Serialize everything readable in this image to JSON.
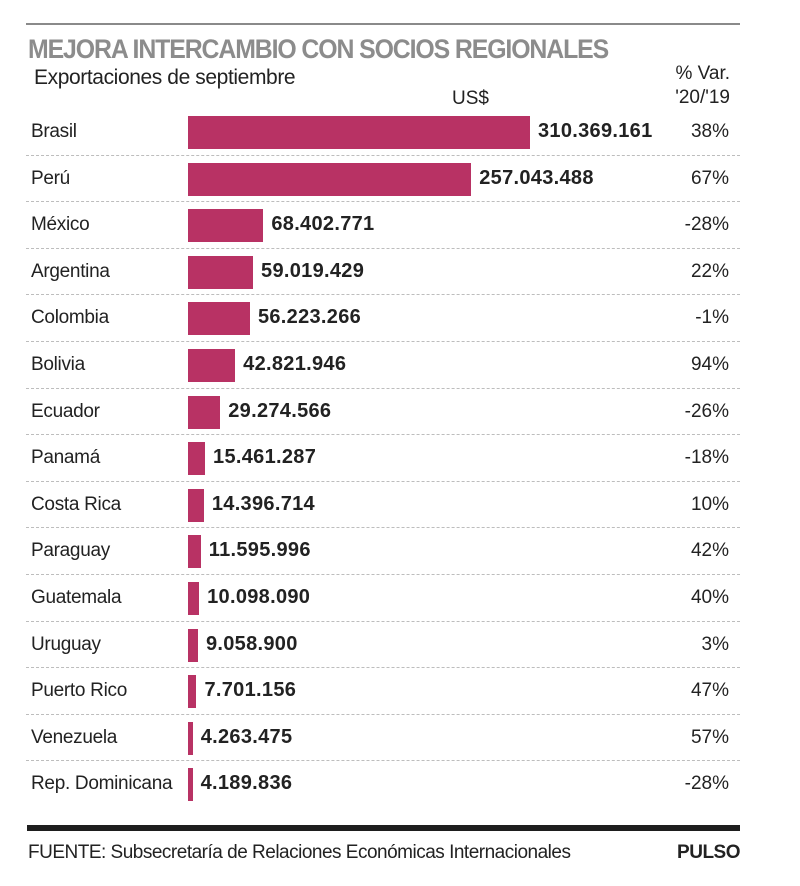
{
  "chart_data": {
    "type": "bar",
    "orientation": "horizontal",
    "title": "MEJORA INTERCAMBIO CON SOCIOS REGIONALES",
    "subtitle": "Exportaciones de septiembre",
    "value_unit": "US$",
    "var_header": [
      "% Var.",
      "'20/'19"
    ],
    "categories": [
      "Brasil",
      "Perú",
      "México",
      "Argentina",
      "Colombia",
      "Bolivia",
      "Ecuador",
      "Panamá",
      "Costa Rica",
      "Paraguay",
      "Guatemala",
      "Uruguay",
      "Puerto Rico",
      "Venezuela",
      "Rep. Dominicana"
    ],
    "values": [
      310369161,
      257043488,
      68402771,
      59019429,
      56223266,
      42821946,
      29274566,
      15461287,
      14396714,
      11595996,
      10098090,
      9058900,
      7701156,
      4263475,
      4189836
    ],
    "value_labels": [
      "310.369.161",
      "257.043.488",
      "68.402.771",
      "59.019.429",
      "56.223.266",
      "42.821.946",
      "29.274.566",
      "15.461.287",
      "14.396.714",
      "11.595.996",
      "10.098.090",
      "9.058.900",
      "7.701.156",
      "4.263.475",
      "4.189.836"
    ],
    "var_pct": [
      "38%",
      "67%",
      "-28%",
      "22%",
      "-1%",
      "94%",
      "-26%",
      "-18%",
      "10%",
      "42%",
      "40%",
      "3%",
      "47%",
      "57%",
      "-28%"
    ],
    "xlim": [
      0,
      310369161
    ],
    "bar_color": "#b83264",
    "grid": false
  },
  "footer": {
    "source": "FUENTE: Subsecretaría de Relaciones Económicas Internacionales",
    "brand": "PULSO"
  }
}
